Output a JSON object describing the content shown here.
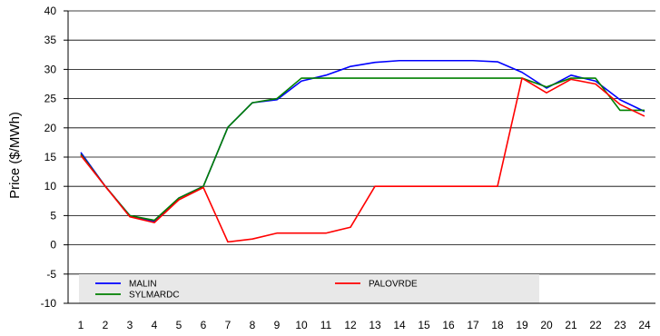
{
  "chart_data": {
    "type": "line",
    "title": "",
    "xlabel": "",
    "ylabel": "Price ($/MWh)",
    "x": [
      1,
      2,
      3,
      4,
      5,
      6,
      7,
      8,
      9,
      10,
      11,
      12,
      13,
      14,
      15,
      16,
      17,
      18,
      19,
      20,
      21,
      22,
      23,
      24
    ],
    "x_tick_labels": [
      "1",
      "2",
      "3",
      "4",
      "5",
      "6",
      "7",
      "8",
      "9",
      "10",
      "11",
      "12",
      "13",
      "14",
      "15",
      "16",
      "17",
      "18",
      "19",
      "20",
      "21",
      "22",
      "23",
      "24"
    ],
    "ylim": [
      -10,
      40
    ],
    "y_ticks": [
      -10,
      -5,
      0,
      5,
      10,
      15,
      20,
      25,
      30,
      35,
      40
    ],
    "y_tick_labels": [
      "-10",
      "-5",
      "0",
      "5",
      "10",
      "15",
      "20",
      "25",
      "30",
      "35",
      "40"
    ],
    "grid": "horizontal",
    "legend_position": "bottom, inside plot",
    "series": [
      {
        "name": "MALIN",
        "color": "#0000ff",
        "values": [
          15.8,
          10.0,
          5.0,
          4.0,
          8.0,
          10.0,
          20.1,
          24.3,
          24.8,
          28.0,
          29.0,
          30.5,
          31.2,
          31.5,
          31.5,
          31.5,
          31.5,
          31.3,
          29.5,
          26.8,
          29.0,
          28.0,
          24.8,
          22.8
        ]
      },
      {
        "name": "SYLMARDC",
        "color": "#008000",
        "values": [
          15.5,
          10.0,
          5.0,
          4.2,
          8.0,
          10.0,
          20.1,
          24.3,
          25.0,
          28.5,
          28.5,
          28.5,
          28.5,
          28.5,
          28.5,
          28.5,
          28.5,
          28.5,
          28.5,
          27.0,
          28.5,
          28.5,
          23.0,
          23.0
        ]
      },
      {
        "name": "PALOVRDE",
        "color": "#ff0000",
        "values": [
          15.3,
          10.0,
          4.8,
          3.8,
          7.7,
          9.8,
          0.5,
          1.0,
          2.0,
          2.0,
          2.0,
          3.0,
          10.0,
          10.0,
          10.0,
          10.0,
          10.0,
          10.0,
          28.5,
          26.0,
          28.3,
          27.5,
          24.0,
          22.0
        ]
      }
    ]
  }
}
